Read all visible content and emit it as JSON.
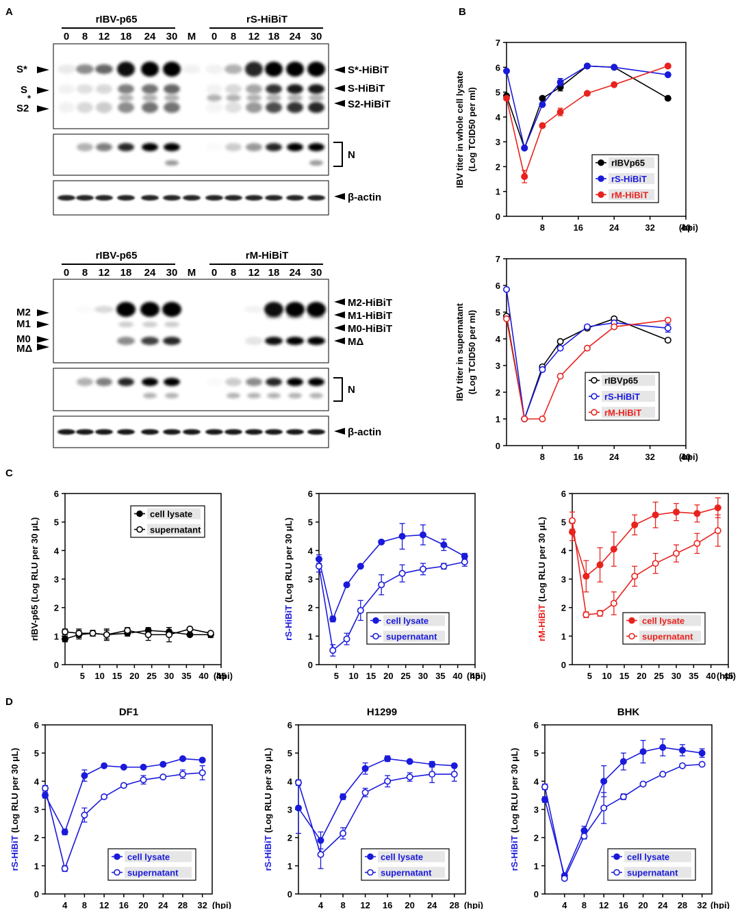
{
  "panels": {
    "A": "A",
    "B": "B",
    "C": "C",
    "D": "D"
  },
  "colors": {
    "black": "#000000",
    "blue": "#1a1adb",
    "red": "#e8231e"
  },
  "blots": [
    {
      "groups": [
        "rIBV-p65",
        "rS-HiBiT"
      ],
      "lanes": [
        "0",
        "8",
        "12",
        "18",
        "24",
        "30",
        "M",
        "0",
        "8",
        "12",
        "18",
        "24",
        "30"
      ],
      "left_labels": [
        "S*",
        "S",
        "*",
        "S2"
      ],
      "right_labels": [
        "S*-HiBiT",
        "S-HiBiT",
        "S2-HiBiT"
      ],
      "n_label": "N",
      "actin_label": "β-actin"
    },
    {
      "groups": [
        "rIBV-p65",
        "rM-HiBiT"
      ],
      "lanes": [
        "0",
        "8",
        "12",
        "18",
        "24",
        "30",
        "M",
        "0",
        "8",
        "12",
        "18",
        "24",
        "30"
      ],
      "left_labels": [
        "M2",
        "M1",
        "M0",
        "MΔ"
      ],
      "right_labels": [
        "M2-HiBiT",
        "M1-HiBiT",
        "M0-HiBiT",
        "MΔ"
      ],
      "n_label": "N",
      "actin_label": "β-actin"
    }
  ],
  "chart_data": [
    {
      "id": "B1",
      "type": "line",
      "title": "",
      "ylabel": [
        "IBV titer in whole cell lysate",
        "(Log TCID50 per ml)"
      ],
      "xlabel": "(hpi)",
      "xlim": [
        0,
        40
      ],
      "ylim": [
        0,
        7
      ],
      "xticks": [
        8,
        16,
        24,
        32,
        40
      ],
      "yticks": [
        0,
        1,
        2,
        3,
        4,
        5,
        6,
        7
      ],
      "x": [
        0,
        4,
        8,
        12,
        18,
        24,
        36
      ],
      "series": [
        {
          "name": "rIBVp65",
          "color": "black",
          "filled": true,
          "values": [
            4.85,
            2.75,
            4.75,
            5.2,
            6.05,
            6.0,
            4.75
          ],
          "err": [
            0,
            0,
            0,
            0.15,
            0,
            0,
            0
          ]
        },
        {
          "name": "rS-HiBiT",
          "color": "blue",
          "filled": true,
          "values": [
            5.85,
            2.75,
            4.5,
            5.4,
            6.05,
            6.0,
            5.7
          ],
          "err": [
            0,
            0,
            0,
            0.15,
            0,
            0,
            0
          ]
        },
        {
          "name": "rM-HiBiT",
          "color": "red",
          "filled": true,
          "values": [
            4.75,
            1.6,
            3.65,
            4.2,
            4.95,
            5.3,
            6.05
          ],
          "err": [
            0,
            0.25,
            0,
            0.15,
            0,
            0,
            0
          ]
        }
      ]
    },
    {
      "id": "B2",
      "type": "line",
      "title": "",
      "ylabel": [
        "IBV titer in supernatant",
        "(Log TCID50 per ml)"
      ],
      "xlabel": "(hpi)",
      "xlim": [
        0,
        40
      ],
      "ylim": [
        0,
        7
      ],
      "xticks": [
        8,
        16,
        24,
        32,
        40
      ],
      "yticks": [
        0,
        1,
        2,
        3,
        4,
        5,
        6,
        7
      ],
      "x": [
        0,
        4,
        8,
        12,
        18,
        24,
        36
      ],
      "series": [
        {
          "name": "rIBVp65",
          "color": "black",
          "filled": false,
          "values": [
            4.85,
            1.0,
            2.95,
            3.9,
            4.4,
            4.75,
            3.95
          ],
          "err": [
            0,
            0,
            0,
            0,
            0,
            0,
            0
          ]
        },
        {
          "name": "rS-HiBiT",
          "color": "blue",
          "filled": false,
          "values": [
            5.85,
            1.0,
            2.85,
            3.65,
            4.45,
            4.6,
            4.4
          ],
          "err": [
            0,
            0,
            0,
            0,
            0,
            0,
            0.15
          ]
        },
        {
          "name": "rM-HiBiT",
          "color": "red",
          "filled": false,
          "values": [
            4.75,
            1.0,
            1.0,
            2.6,
            3.65,
            4.45,
            4.7
          ],
          "err": [
            0,
            0,
            0,
            0,
            0,
            0,
            0
          ]
        }
      ]
    },
    {
      "id": "C1",
      "type": "line",
      "title": "",
      "ylabel": [
        "rIBV-p65 (Log RLU per 30 μL)"
      ],
      "ylabel_color": "black",
      "xlabel": "(hpi)",
      "xlim": [
        0,
        45
      ],
      "ylim": [
        0,
        6
      ],
      "xticks": [
        5,
        10,
        15,
        20,
        25,
        30,
        35,
        40,
        45
      ],
      "yticks": [
        0,
        1,
        2,
        3,
        4,
        5,
        6
      ],
      "x": [
        0,
        4,
        8,
        12,
        18,
        24,
        30,
        36,
        42
      ],
      "series": [
        {
          "name": "cell lysate",
          "color": "black",
          "filled": true,
          "values": [
            0.9,
            1.05,
            1.1,
            1.05,
            1.1,
            1.2,
            1.15,
            1.05,
            1.05
          ],
          "err": [
            0.1,
            0.15,
            0.1,
            0.15,
            0.1,
            0.1,
            0.15,
            0.05,
            0.1
          ]
        },
        {
          "name": "supernatant",
          "color": "black",
          "filled": false,
          "values": [
            1.15,
            1.1,
            1.1,
            1.05,
            1.2,
            1.05,
            1.05,
            1.25,
            1.1
          ],
          "err": [
            0.1,
            0.15,
            0.1,
            0.2,
            0.1,
            0.2,
            0.25,
            0.05,
            0.05
          ]
        }
      ]
    },
    {
      "id": "C2",
      "type": "line",
      "title": "",
      "ylabel": [
        "rS-HiBiT (Log RLU per 30 μL)"
      ],
      "ylabel_color": "blue",
      "xlabel": "(hpi)",
      "xlim": [
        0,
        45
      ],
      "ylim": [
        0,
        6
      ],
      "xticks": [
        5,
        10,
        15,
        20,
        25,
        30,
        35,
        40,
        45
      ],
      "yticks": [
        0,
        1,
        2,
        3,
        4,
        5,
        6
      ],
      "x": [
        0,
        4,
        8,
        12,
        18,
        24,
        30,
        36,
        42
      ],
      "series": [
        {
          "name": "cell lysate",
          "color": "blue",
          "filled": true,
          "values": [
            3.7,
            1.6,
            2.8,
            3.45,
            4.3,
            4.5,
            4.55,
            4.2,
            3.8
          ],
          "err": [
            0.15,
            0.1,
            0.05,
            0.05,
            0.05,
            0.45,
            0.35,
            0.2,
            0.1
          ]
        },
        {
          "name": "supernatant",
          "color": "blue",
          "filled": false,
          "values": [
            3.45,
            0.5,
            0.9,
            1.9,
            2.8,
            3.2,
            3.35,
            3.45,
            3.6
          ],
          "err": [
            0.2,
            0.2,
            0.2,
            0.35,
            0.35,
            0.3,
            0.2,
            0.1,
            0.15
          ]
        }
      ]
    },
    {
      "id": "C3",
      "type": "line",
      "title": "",
      "ylabel": [
        "rM-HiBiT (Log RLU per 30 μL)"
      ],
      "ylabel_color": "red",
      "xlabel": "(hpi)",
      "xlim": [
        0,
        45
      ],
      "ylim": [
        0,
        6
      ],
      "xticks": [
        5,
        10,
        15,
        20,
        25,
        30,
        35,
        40,
        45
      ],
      "yticks": [
        0,
        1,
        2,
        3,
        4,
        5,
        6
      ],
      "x": [
        0,
        4,
        8,
        12,
        18,
        24,
        30,
        36,
        42
      ],
      "series": [
        {
          "name": "cell lysate",
          "color": "red",
          "filled": true,
          "values": [
            4.65,
            3.1,
            3.5,
            4.05,
            4.9,
            5.25,
            5.35,
            5.3,
            5.5
          ],
          "err": [
            0.3,
            0.55,
            0.6,
            0.6,
            0.35,
            0.45,
            0.3,
            0.3,
            0.35
          ]
        },
        {
          "name": "supernatant",
          "color": "red",
          "filled": false,
          "values": [
            5.05,
            1.75,
            1.8,
            2.15,
            3.1,
            3.55,
            3.9,
            4.25,
            4.7
          ],
          "err": [
            0.3,
            0.1,
            0.1,
            0.4,
            0.35,
            0.35,
            0.3,
            0.35,
            0.55
          ]
        }
      ]
    },
    {
      "id": "D1",
      "type": "line",
      "title": "DF1",
      "ylabel": [
        "rS-HiBiT (Log RLU per 30 μL)"
      ],
      "ylabel_color": "blue",
      "xlabel": "(hpi)",
      "xlim": [
        0,
        34
      ],
      "ylim": [
        0,
        6
      ],
      "xticks": [
        4,
        8,
        12,
        16,
        20,
        24,
        28,
        32
      ],
      "yticks": [
        0,
        1,
        2,
        3,
        4,
        5,
        6
      ],
      "x": [
        0,
        4,
        8,
        12,
        16,
        20,
        24,
        28,
        32
      ],
      "series": [
        {
          "name": "cell lysate",
          "color": "blue",
          "filled": true,
          "values": [
            3.5,
            2.2,
            4.2,
            4.55,
            4.5,
            4.5,
            4.6,
            4.8,
            4.75
          ],
          "err": [
            0.1,
            0.1,
            0.2,
            0.05,
            0.05,
            0.05,
            0.05,
            0.05,
            0.05
          ]
        },
        {
          "name": "supernatant",
          "color": "blue",
          "filled": false,
          "values": [
            3.75,
            0.9,
            2.8,
            3.45,
            3.85,
            4.05,
            4.15,
            4.25,
            4.3
          ],
          "err": [
            0.1,
            0.1,
            0.25,
            0.05,
            0.05,
            0.15,
            0.05,
            0.15,
            0.25
          ]
        }
      ]
    },
    {
      "id": "D2",
      "type": "line",
      "title": "H1299",
      "ylabel": [
        "rS-HiBiT (Log RLU per 30 μL)"
      ],
      "ylabel_color": "blue",
      "xlabel": "(hpi)",
      "xlim": [
        0,
        30
      ],
      "ylim": [
        0,
        6
      ],
      "xticks": [
        4,
        8,
        12,
        16,
        20,
        24,
        28
      ],
      "yticks": [
        0,
        1,
        2,
        3,
        4,
        5,
        6
      ],
      "x": [
        0,
        4,
        8,
        12,
        16,
        20,
        24,
        28
      ],
      "series": [
        {
          "name": "cell lysate",
          "color": "blue",
          "filled": true,
          "values": [
            3.05,
            1.9,
            3.45,
            4.45,
            4.8,
            4.7,
            4.6,
            4.55
          ],
          "err": [
            0.9,
            0.3,
            0.1,
            0.2,
            0.1,
            0.05,
            0.1,
            0.05
          ]
        },
        {
          "name": "supernatant",
          "color": "blue",
          "filled": false,
          "values": [
            3.95,
            1.4,
            2.15,
            3.6,
            4.0,
            4.15,
            4.25,
            4.25
          ],
          "err": [
            0.1,
            0.5,
            0.2,
            0.15,
            0.2,
            0.15,
            0.3,
            0.25
          ]
        }
      ]
    },
    {
      "id": "D3",
      "type": "line",
      "title": "BHK",
      "ylabel": [
        "rS-HiBiT (Log RLU per 30 μL)"
      ],
      "ylabel_color": "blue",
      "xlabel": "(hpi)",
      "xlim": [
        0,
        34
      ],
      "ylim": [
        0,
        6
      ],
      "xticks": [
        4,
        8,
        12,
        16,
        20,
        24,
        28,
        32
      ],
      "yticks": [
        0,
        1,
        2,
        3,
        4,
        5,
        6
      ],
      "x": [
        0,
        4,
        8,
        12,
        16,
        20,
        24,
        28,
        32
      ],
      "series": [
        {
          "name": "cell lysate",
          "color": "blue",
          "filled": true,
          "values": [
            3.35,
            0.65,
            2.25,
            4.0,
            4.7,
            5.05,
            5.2,
            5.1,
            5.0
          ],
          "err": [
            0.1,
            0.05,
            0.15,
            0.55,
            0.3,
            0.4,
            0.3,
            0.2,
            0.15
          ]
        },
        {
          "name": "supernatant",
          "color": "blue",
          "filled": false,
          "values": [
            3.8,
            0.55,
            2.05,
            3.05,
            3.45,
            3.9,
            4.25,
            4.55,
            4.6
          ],
          "err": [
            0.1,
            0.05,
            0.1,
            0.55,
            0.1,
            0.05,
            0.05,
            0.05,
            0.05
          ]
        }
      ]
    }
  ]
}
